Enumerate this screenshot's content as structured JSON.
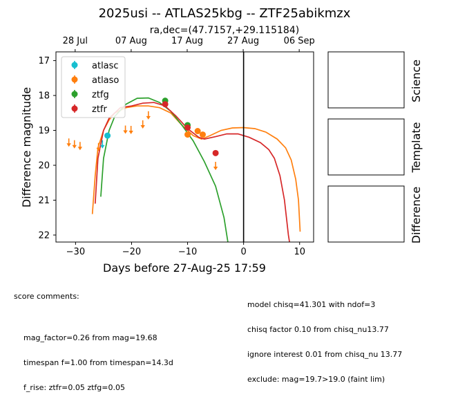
{
  "chart_data": {
    "type": "scatter",
    "title": "2025usi -- ATLAS25kbg -- ZTF25abikmzx",
    "subtitle": "ra,dec=(47.7157,+29.115184)",
    "xlabel": "Days before 27-Aug-25 17:59",
    "ylabel": "Difference magnitude",
    "xlim": [
      -33.5,
      12.5
    ],
    "ylim": [
      22.2,
      16.75
    ],
    "y_inverted": true,
    "x_ticks": [
      -30,
      -20,
      -10,
      0,
      10
    ],
    "y_ticks": [
      17,
      18,
      19,
      20,
      21,
      22
    ],
    "top_axis": {
      "ticks": [
        {
          "x": -30.07,
          "label": "28 Jul"
        },
        {
          "x": -20.07,
          "label": "07 Aug"
        },
        {
          "x": -10.07,
          "label": "17 Aug"
        },
        {
          "x": -0.07,
          "label": "27 Aug"
        },
        {
          "x": 9.93,
          "label": "06 Sep"
        }
      ]
    },
    "vline_x": 0,
    "legend_position": "upper-left",
    "series": [
      {
        "name": "atlasc",
        "color": "#17becf",
        "points": [
          [
            -24.3,
            19.15
          ]
        ],
        "upper_limits": [
          [
            -25.2,
            19.4
          ]
        ],
        "fit": []
      },
      {
        "name": "atlaso",
        "color": "#ff7f0e",
        "points": [
          [
            -10.0,
            19.12
          ],
          [
            -8.2,
            19.02
          ],
          [
            -7.3,
            19.12
          ]
        ],
        "upper_limits": [
          [
            -31.2,
            19.35
          ],
          [
            -30.2,
            19.4
          ],
          [
            -29.2,
            19.45
          ],
          [
            -25.9,
            19.48
          ],
          [
            -21.1,
            18.98
          ],
          [
            -20.1,
            18.99
          ],
          [
            -18.0,
            18.83
          ],
          [
            -17.0,
            18.57
          ],
          [
            -5.0,
            20.02
          ]
        ],
        "fit": [
          [
            -27.0,
            21.4
          ],
          [
            -26.5,
            20.3
          ],
          [
            -26.0,
            19.5
          ],
          [
            -25.0,
            19.0
          ],
          [
            -24.0,
            18.7
          ],
          [
            -23.0,
            18.5
          ],
          [
            -21.0,
            18.35
          ],
          [
            -19.0,
            18.3
          ],
          [
            -17.0,
            18.3
          ],
          [
            -15.0,
            18.35
          ],
          [
            -13.0,
            18.5
          ],
          [
            -11.0,
            18.85
          ],
          [
            -9.0,
            19.15
          ],
          [
            -7.5,
            19.25
          ],
          [
            -6.0,
            19.15
          ],
          [
            -4.0,
            19.0
          ],
          [
            -2.0,
            18.93
          ],
          [
            0.0,
            18.92
          ],
          [
            2.0,
            18.95
          ],
          [
            4.0,
            19.05
          ],
          [
            6.0,
            19.25
          ],
          [
            7.5,
            19.5
          ],
          [
            8.5,
            19.85
          ],
          [
            9.3,
            20.4
          ],
          [
            9.8,
            21.0
          ],
          [
            10.1,
            21.9
          ]
        ]
      },
      {
        "name": "ztfg",
        "color": "#2ca02c",
        "points": [
          [
            -14.0,
            18.15
          ],
          [
            -10.0,
            18.85
          ]
        ],
        "upper_limits": [],
        "fit": [
          [
            -25.5,
            20.9
          ],
          [
            -25.0,
            19.8
          ],
          [
            -24.0,
            19.0
          ],
          [
            -23.0,
            18.6
          ],
          [
            -21.0,
            18.25
          ],
          [
            -19.0,
            18.08
          ],
          [
            -17.0,
            18.07
          ],
          [
            -15.0,
            18.2
          ],
          [
            -13.0,
            18.45
          ],
          [
            -11.0,
            18.85
          ],
          [
            -9.0,
            19.3
          ],
          [
            -7.0,
            19.9
          ],
          [
            -5.0,
            20.6
          ],
          [
            -3.5,
            21.5
          ],
          [
            -2.8,
            22.2
          ]
        ]
      },
      {
        "name": "ztfr",
        "color": "#d62728",
        "points": [
          [
            -14.0,
            18.25
          ],
          [
            -10.0,
            18.92
          ],
          [
            -5.0,
            19.65
          ]
        ],
        "upper_limits": [],
        "fit": [
          [
            -26.5,
            21.1
          ],
          [
            -26.0,
            19.8
          ],
          [
            -25.0,
            19.0
          ],
          [
            -24.0,
            18.65
          ],
          [
            -22.0,
            18.35
          ],
          [
            -20.0,
            18.3
          ],
          [
            -18.0,
            18.22
          ],
          [
            -16.0,
            18.2
          ],
          [
            -14.0,
            18.3
          ],
          [
            -12.0,
            18.6
          ],
          [
            -10.0,
            18.95
          ],
          [
            -8.0,
            19.2
          ],
          [
            -7.0,
            19.25
          ],
          [
            -5.0,
            19.18
          ],
          [
            -3.0,
            19.1
          ],
          [
            -1.0,
            19.1
          ],
          [
            1.0,
            19.2
          ],
          [
            3.0,
            19.35
          ],
          [
            4.5,
            19.55
          ],
          [
            5.5,
            19.8
          ],
          [
            6.5,
            20.3
          ],
          [
            7.3,
            21.0
          ],
          [
            8.0,
            22.0
          ],
          [
            8.2,
            22.2
          ]
        ]
      }
    ]
  },
  "panels": {
    "science_label": "Science",
    "template_label": "Template",
    "difference_label": "Difference"
  },
  "comments": {
    "score_header": "score comments:",
    "left_lines": [
      "mag_factor=0.26 from mag=19.68",
      "timespan f=1.00 from timespan=14.3d",
      "f_rise: ztfr=0.05 ztfg=0.05"
    ],
    "right_lines": [
      "model chisq=41.301 with ndof=3",
      "chisq factor 0.10 from chisq_nu13.77",
      "ignore interest 0.01 from chisq_nu 13.77",
      "exclude: mag=19.7>19.0 (faint lim)"
    ]
  }
}
